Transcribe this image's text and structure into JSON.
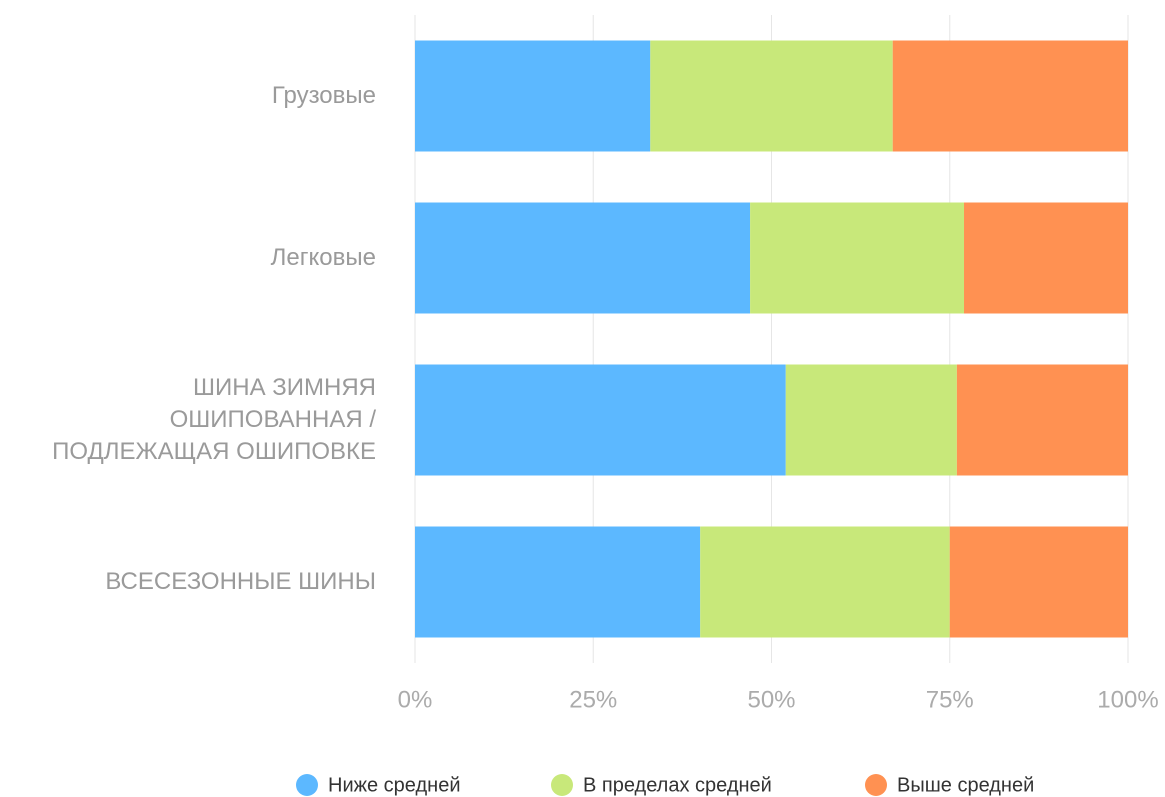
{
  "chart_data": {
    "type": "bar",
    "orientation": "horizontal",
    "stacked": true,
    "categories": [
      "Грузовые",
      "Легковые",
      "ШИНА ЗИМНЯЯ ОШИПОВАННАЯ / ПОДЛЕЖАЩАЯ ОШИПОВКЕ",
      "ВСЕСЕЗОННЫЕ ШИНЫ"
    ],
    "series": [
      {
        "name": "Ниже средней",
        "color": "#5cb8ff",
        "values": [
          33,
          47,
          52,
          40
        ]
      },
      {
        "name": "В пределах средней",
        "color": "#c8e87a",
        "values": [
          34,
          30,
          24,
          35
        ]
      },
      {
        "name": "Выше средней",
        "color": "#ff9152",
        "values": [
          33,
          23,
          24,
          25
        ]
      }
    ],
    "xlim": [
      0,
      100
    ],
    "xticks": [
      {
        "value": 0,
        "label": "0%"
      },
      {
        "value": 25,
        "label": "25%"
      },
      {
        "value": 50,
        "label": "50%"
      },
      {
        "value": 75,
        "label": "75%"
      },
      {
        "value": 100,
        "label": "100%"
      }
    ],
    "grid": true,
    "legend": "bottom"
  }
}
